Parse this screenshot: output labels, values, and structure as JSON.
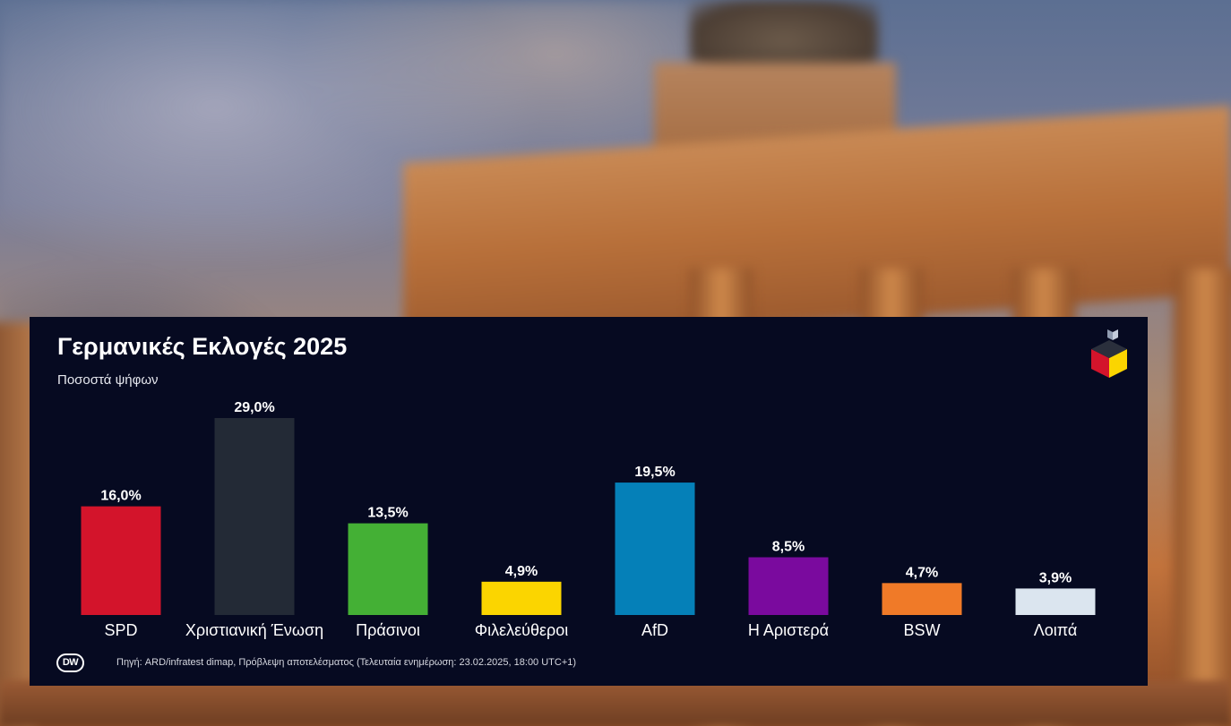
{
  "panel": {
    "title": "Γερμανικές Εκλογές 2025",
    "subtitle": "Ποσοστά ψήφων",
    "source": "Πηγή: ARD/infratest dimap, Πρόβλεψη αποτελέσματος (Τελευταία ενημέρωση: 23.02.2025, 18:00 UTC+1)",
    "broadcaster_logo": "DW",
    "corner_logo_icon": "ballot-box-icon",
    "background_color": "#060a21"
  },
  "chart_data": {
    "type": "bar",
    "title": "Γερμανικές Εκλογές 2025",
    "subtitle": "Ποσοστά ψήφων",
    "xlabel": "",
    "ylabel": "",
    "ylim": [
      0,
      29
    ],
    "grid": false,
    "categories": [
      "SPD",
      "Χριστιανική Ένωση",
      "Πράσινοι",
      "Φιλελεύθεροι",
      "AfD",
      "Η Αριστερά",
      "BSW",
      "Λοιπά"
    ],
    "values": [
      16.0,
      29.0,
      13.5,
      4.9,
      19.5,
      8.5,
      4.7,
      3.9
    ],
    "value_labels": [
      "16,0%",
      "29,0%",
      "13,5%",
      "4,9%",
      "19,5%",
      "8,5%",
      "4,7%",
      "3,9%"
    ],
    "colors": [
      "#d3142b",
      "#232a36",
      "#44b035",
      "#fbd500",
      "#0580b8",
      "#7a0a9e",
      "#f07a28",
      "#dbe5ef"
    ]
  }
}
